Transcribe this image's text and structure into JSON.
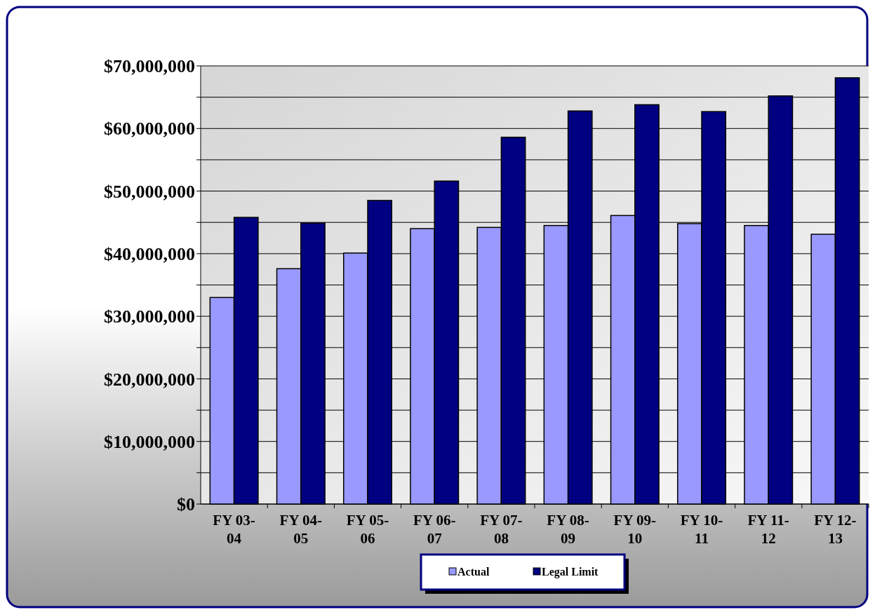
{
  "chart_data": {
    "type": "bar",
    "categories": [
      "FY 03-04",
      "FY 04-05",
      "FY 05-06",
      "FY 06-07",
      "FY 07-08",
      "FY 08-09",
      "FY 09-10",
      "FY 10-11",
      "FY 11-12",
      "FY 12-13"
    ],
    "series": [
      {
        "name": "Actual",
        "color": "#9999ff",
        "values": [
          33000000,
          37600000,
          40100000,
          44000000,
          44200000,
          44500000,
          46100000,
          44800000,
          44500000,
          43100000
        ]
      },
      {
        "name": "Legal Limit",
        "color": "#000080",
        "values": [
          45800000,
          44900000,
          48500000,
          51600000,
          58600000,
          62800000,
          63800000,
          62700000,
          65200000,
          68100000
        ]
      }
    ],
    "ylim": [
      0,
      70000000
    ],
    "yticks": [
      {
        "value": 0,
        "label": "$0"
      },
      {
        "value": 5000000,
        "label": null
      },
      {
        "value": 10000000,
        "label": "$10,000,000"
      },
      {
        "value": 15000000,
        "label": null
      },
      {
        "value": 20000000,
        "label": "$20,000,000"
      },
      {
        "value": 25000000,
        "label": null
      },
      {
        "value": 30000000,
        "label": "$30,000,000"
      },
      {
        "value": 35000000,
        "label": null
      },
      {
        "value": 40000000,
        "label": "$40,000,000"
      },
      {
        "value": 45000000,
        "label": null
      },
      {
        "value": 50000000,
        "label": "$50,000,000"
      },
      {
        "value": 55000000,
        "label": null
      },
      {
        "value": 60000000,
        "label": "$60,000,000"
      },
      {
        "value": 65000000,
        "label": null
      },
      {
        "value": 70000000,
        "label": "$70,000,000"
      }
    ],
    "grid": true,
    "legend": "bottom"
  }
}
